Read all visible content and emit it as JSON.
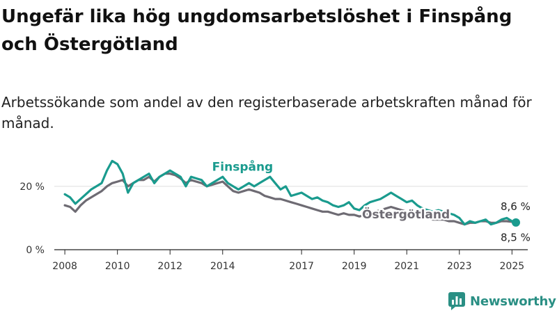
{
  "title": "Ungefär lika hög ungdomsarbetslöshet i Finspång och Östergötland",
  "subtitle": "Arbetssökande som andel av den registerbaserade arbetskraften månad för månad.",
  "brand": {
    "name": "Newsworthy",
    "color": "#2a8f84"
  },
  "colors": {
    "finspang": "#1a9b8e",
    "ostergotland": "#6e6b73",
    "axis": "#222222",
    "grid": "#dddddd"
  },
  "chart_data": {
    "type": "line",
    "x_unit": "year",
    "xlim": [
      2007.6,
      2025.6
    ],
    "ylim": [
      0,
      27
    ],
    "x_ticks": [
      2008,
      2010,
      2012,
      2014,
      2017,
      2019,
      2021,
      2023,
      2025
    ],
    "x_tick_labels": [
      "2008",
      "2010",
      "2012",
      "2014",
      "2017",
      "2019",
      "2021",
      "2023",
      "2025"
    ],
    "y_ticks": [
      0,
      20
    ],
    "y_tick_labels": [
      "0 %",
      "20 %"
    ],
    "series": [
      {
        "name": "Finspång",
        "key": "finspang",
        "x": [
          2008.0,
          2008.2,
          2008.4,
          2008.6,
          2008.8,
          2009.0,
          2009.2,
          2009.4,
          2009.6,
          2009.8,
          2010.0,
          2010.2,
          2010.4,
          2010.6,
          2010.8,
          2011.0,
          2011.2,
          2011.4,
          2011.6,
          2011.8,
          2012.0,
          2012.2,
          2012.4,
          2012.6,
          2012.8,
          2013.0,
          2013.2,
          2013.4,
          2013.6,
          2013.8,
          2014.0,
          2014.2,
          2014.4,
          2014.6,
          2014.8,
          2015.0,
          2015.2,
          2015.4,
          2015.6,
          2015.8,
          2016.0,
          2016.2,
          2016.4,
          2016.6,
          2016.8,
          2017.0,
          2017.2,
          2017.4,
          2017.6,
          2017.8,
          2018.0,
          2018.2,
          2018.4,
          2018.6,
          2018.8,
          2019.0,
          2019.2,
          2019.4,
          2019.6,
          2019.8,
          2020.0,
          2020.2,
          2020.4,
          2020.6,
          2020.8,
          2021.0,
          2021.2,
          2021.4,
          2021.6,
          2021.8,
          2022.0,
          2022.2,
          2022.4,
          2022.6,
          2022.8,
          2023.0,
          2023.2,
          2023.4,
          2023.6,
          2023.8,
          2024.0,
          2024.2,
          2024.4,
          2024.6,
          2024.8,
          2025.0,
          2025.15
        ],
        "values": [
          17.5,
          16.5,
          14.5,
          16,
          17.5,
          19,
          20,
          21,
          25,
          28,
          27,
          24,
          18,
          21,
          22,
          23,
          24,
          21,
          23,
          24,
          25,
          24,
          23,
          20,
          23,
          22.5,
          22,
          20,
          21,
          22,
          23,
          21,
          20,
          19,
          20,
          21,
          20,
          21,
          22,
          23,
          21,
          19,
          20,
          17,
          17.5,
          18,
          17,
          16,
          16.5,
          15.5,
          15,
          14,
          13.5,
          14,
          15,
          13,
          12.5,
          14,
          15,
          15.5,
          16,
          17,
          18,
          17,
          16,
          15,
          15.5,
          14,
          13,
          12.5,
          12,
          12.5,
          12,
          11.5,
          11,
          10,
          8,
          9,
          8.5,
          9,
          9.5,
          8,
          8.5,
          9.5,
          10,
          9,
          8.6
        ]
      },
      {
        "name": "Östergötland",
        "key": "ostergotland",
        "x": [
          2008.0,
          2008.2,
          2008.4,
          2008.6,
          2008.8,
          2009.0,
          2009.2,
          2009.4,
          2009.6,
          2009.8,
          2010.0,
          2010.2,
          2010.4,
          2010.6,
          2010.8,
          2011.0,
          2011.2,
          2011.4,
          2011.6,
          2011.8,
          2012.0,
          2012.2,
          2012.4,
          2012.6,
          2012.8,
          2013.0,
          2013.2,
          2013.4,
          2013.6,
          2013.8,
          2014.0,
          2014.2,
          2014.4,
          2014.6,
          2014.8,
          2015.0,
          2015.2,
          2015.4,
          2015.6,
          2015.8,
          2016.0,
          2016.2,
          2016.4,
          2016.6,
          2016.8,
          2017.0,
          2017.2,
          2017.4,
          2017.6,
          2017.8,
          2018.0,
          2018.2,
          2018.4,
          2018.6,
          2018.8,
          2019.0,
          2019.2,
          2019.4,
          2019.6,
          2019.8,
          2020.0,
          2020.2,
          2020.4,
          2020.6,
          2020.8,
          2021.0,
          2021.2,
          2021.4,
          2021.6,
          2021.8,
          2022.0,
          2022.2,
          2022.4,
          2022.6,
          2022.8,
          2023.0,
          2023.2,
          2023.4,
          2023.6,
          2023.8,
          2024.0,
          2024.2,
          2024.4,
          2024.6,
          2024.8,
          2025.0,
          2025.15
        ],
        "values": [
          14,
          13.5,
          12,
          14,
          15.5,
          16.5,
          17.5,
          18.5,
          20,
          21,
          21.5,
          22,
          20,
          21,
          22,
          22,
          23,
          21.5,
          23,
          24,
          24,
          23.5,
          22.5,
          21,
          22,
          21.5,
          21,
          20,
          20.5,
          21,
          21.5,
          20,
          18.5,
          18,
          18.5,
          19,
          18.5,
          18,
          17,
          16.5,
          16,
          16,
          15.5,
          15,
          14.5,
          14,
          13.5,
          13,
          12.5,
          12,
          12,
          11.5,
          11,
          11.5,
          11,
          11,
          10.5,
          11,
          11.5,
          12,
          12.5,
          13,
          13.5,
          13,
          12.5,
          12,
          11.5,
          11,
          10.5,
          10,
          9.5,
          9.5,
          9.5,
          9,
          9,
          8.5,
          8,
          8.5,
          8.5,
          9,
          9,
          8.5,
          8.5,
          9,
          9,
          8.8,
          8.5
        ]
      }
    ],
    "annotations": [
      {
        "series": "finspang",
        "text": "Finspång",
        "x": 2013.6,
        "y": 24
      },
      {
        "series": "ostergotland",
        "text": "Östergötland",
        "x": 2019.3,
        "y": 9
      }
    ],
    "end_labels": [
      {
        "series": "finspang",
        "text": "8,6 %",
        "x": 2025.15,
        "y": 8.6
      },
      {
        "series": "ostergotland",
        "text": "8,5 %",
        "x": 2025.15,
        "y": 8.5
      }
    ]
  }
}
